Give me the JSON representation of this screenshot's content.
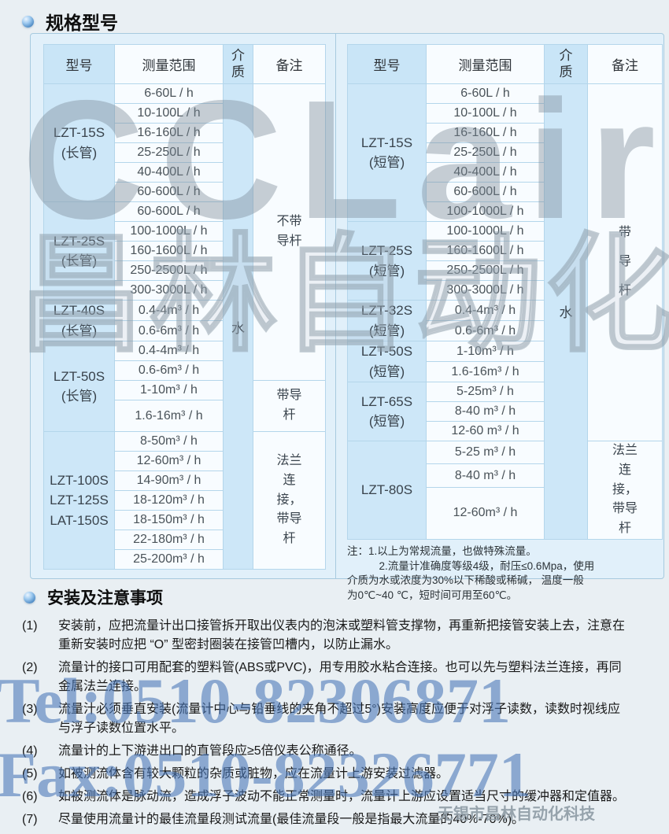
{
  "page": {
    "section1_title": "规格型号",
    "section2_title": "安装及注意事项"
  },
  "colors": {
    "page_bg": "#e9eff3",
    "panel_bg": "#e1f0fa",
    "cell_blue": "#cde7f8",
    "cell_white": "#f8fcff",
    "grid_line": "#b4d6eb",
    "watermark_blue": "#4676b7",
    "watermark_gray": "#8a97a3"
  },
  "tables": {
    "headers": {
      "model": "型号",
      "range": "测量范围",
      "medium": "介质",
      "remark": "备注"
    },
    "left": {
      "medium": "水",
      "groups": [
        {
          "model": "LZT-15S\n(长管)",
          "ranges": [
            "6-60L / h",
            "10-100L / h",
            "16-160L / h",
            "25-250L / h",
            "40-400L / h",
            "60-600L / h"
          ]
        },
        {
          "model": "LZT-25S\n(长管)",
          "ranges": [
            "60-600L / h",
            "100-1000L / h",
            "160-1600L / h",
            "250-2500L / h",
            "300-3000L / h"
          ]
        },
        {
          "model": "LZT-40S\n(长管)",
          "ranges": [
            "0.4-4m³ / h",
            "0.6-6m³ / h"
          ]
        },
        {
          "model": "LZT-50S\n(长管)",
          "ranges": [
            "0.4-4m³ / h",
            "0.6-6m³ / h",
            "1-10m³ / h",
            "1.6-16m³ / h"
          ]
        },
        {
          "model": "LZT-100S\nLZT-125S\nLAT-150S",
          "ranges": [
            "8-50m³ / h",
            "12-60m³ / h",
            "14-90m³ / h",
            "18-120m³ / h",
            "18-150m³ / h",
            "22-180m³ / h",
            "25-200m³ / h"
          ]
        }
      ],
      "remarks": [
        {
          "label": "不带导杆",
          "rows": 15
        },
        {
          "label": "带导杆",
          "rows": 2
        },
        {
          "label": "法兰连接，带导杆",
          "rows": 7
        }
      ]
    },
    "right": {
      "medium": "水",
      "groups": [
        {
          "model": "LZT-15S\n(短管)",
          "ranges": [
            "6-60L / h",
            "10-100L / h",
            "16-160L / h",
            "25-250L / h",
            "40-400L / h",
            "60-600L / h",
            "100-1000L / h"
          ]
        },
        {
          "model": "LZT-25S\n(短管)",
          "ranges": [
            "100-1000L / h",
            "160-1600L / h",
            "250-2500L / h",
            "300-3000L / h"
          ]
        },
        {
          "model": "LZT-32S\n(短管)",
          "ranges": [
            "0.4-4m³ / h",
            "0.6-6m³ / h"
          ]
        },
        {
          "model": "LZT-50S\n(短管)",
          "ranges": [
            "1-10m³ / h",
            "1.6-16m³ / h"
          ]
        },
        {
          "model": "LZT-65S\n(短管)",
          "ranges": [
            "5-25m³ / h",
            "8-40 m³ / h",
            "12-60 m³ / h"
          ]
        },
        {
          "model": "LZT-80S",
          "ranges": [
            "5-25 m³ / h",
            "8-40 m³ / h",
            "12-60m³ / h"
          ]
        }
      ],
      "remarks": [
        {
          "label": "带导杆",
          "rows": 18
        },
        {
          "label": "法兰连接，带导杆",
          "rows": 3
        }
      ],
      "note_lines": [
        "注：1.以上为常规流量，也做特殊流量。",
        "　　　2.流量计准确度等级4级，耐压≤0.6Mpa，使用",
        "介质为水或浓度为30%以下稀酸或稀碱， 温度一般",
        "为0℃~40 ℃，短时间可用至60℃。"
      ]
    }
  },
  "install": {
    "items": [
      {
        "num": "(1)",
        "text": "安装前，应把流量计出口接管拆开取出仪表内的泡沫或塑料管支撑物，再重新把接管安装上去，注意在重新安装时应把 “O” 型密封圈装在接管凹槽内，以防止漏水。"
      },
      {
        "num": "(2)",
        "text": "流量计的接口可用配套的塑料管(ABS或PVC)，用专用胶水粘合连接。也可以先与塑料法兰连接，再同金属法兰连接。"
      },
      {
        "num": "(3)",
        "text": "流量汁必须垂直安装(流量计中心与铅垂线的夹角不超过5°)安装高度应便于对浮子读数，读数时视线应与浮子读数位置水平。"
      },
      {
        "num": "(4)",
        "text": "流量计的上下游进出口的直管段应≥5倍仪表公称通径。"
      },
      {
        "num": "(5)",
        "text": "如被测流体含有较大颗粒的杂质或脏物，应在流量计上游安装过滤器。"
      },
      {
        "num": "(6)",
        "text": "如被测流体是脉动流，造成浮子波动不能正常测量时，流量计上游应设置适当尺寸的缓冲器和定值器。"
      },
      {
        "num": "(7)",
        "text": "尽量使用流量计的最佳流量段测试流量(最佳流量段一般是指最大流量的40%-70%)。"
      }
    ]
  },
  "watermarks": {
    "big_text": "CCLair",
    "big_cn": "昌林自动化",
    "tel": "Tel:0510-82306871",
    "fax": "Fax:0510-82326771",
    "company": "无锡市昌林自动化科技"
  }
}
